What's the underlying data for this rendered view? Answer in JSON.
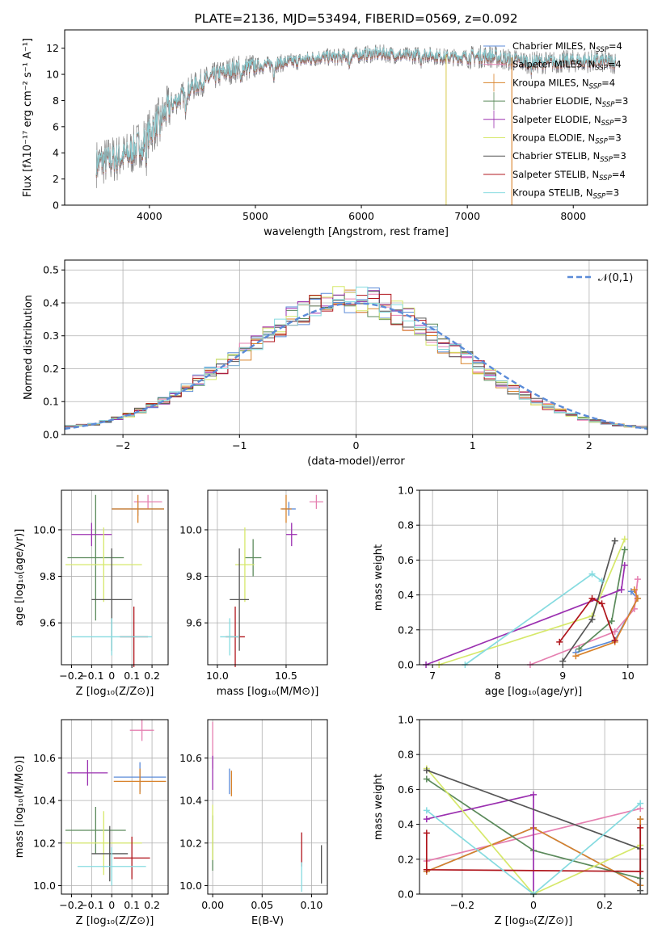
{
  "chart_data": [
    {
      "type": "line",
      "title": "PLATE=2136, MJD=53494, FIBERID=0569, z=0.092",
      "xlabel": "wavelength [Angstrom, rest frame]",
      "ylabel": "Flux [fλ10⁻¹⁷ erg cm⁻² s⁻¹ A⁻¹]",
      "xlim": [
        3200,
        8700
      ],
      "ylim": [
        0,
        13.4
      ],
      "xticks": [
        4000,
        5000,
        6000,
        7000,
        8000
      ],
      "yticks": [
        0,
        2,
        4,
        6,
        8,
        10,
        12
      ],
      "legend_position": "right",
      "legend": [
        {
          "label": "Chabrier MILES, N_SSP=4",
          "color": "#5b8bd8"
        },
        {
          "label": "Salpeter MILES, N_SSP=4",
          "color": "#e57fb0"
        },
        {
          "label": "Kroupa MILES, N_SSP=4",
          "color": "#d8822a"
        },
        {
          "label": "Chabrier ELODIE, N_SSP=3",
          "color": "#5b8a5b"
        },
        {
          "label": "Salpeter ELODIE, N_SSP=3",
          "color": "#9b30b0"
        },
        {
          "label": "Kroupa ELODIE, N_SSP=3",
          "color": "#d6e86a"
        },
        {
          "label": "Chabrier STELIB, N_SSP=3",
          "color": "#555555"
        },
        {
          "label": "Salpeter STELIB, N_SSP=4",
          "color": "#b0151c"
        },
        {
          "label": "Kroupa STELIB, N_SSP=3",
          "color": "#86dbe0"
        }
      ],
      "continuum": {
        "x": [
          3500,
          3800,
          4000,
          4200,
          4400,
          4600,
          4800,
          5000,
          5200,
          5400,
          5600,
          5800,
          6000,
          6200,
          6400,
          6600,
          6800,
          7000,
          7200,
          7400,
          7600,
          7800,
          8000,
          8200,
          8400
        ],
        "y": [
          3.2,
          3.8,
          5.5,
          7.6,
          9.0,
          9.8,
          10.4,
          10.6,
          10.8,
          11.0,
          11.3,
          11.3,
          11.5,
          11.6,
          11.4,
          11.5,
          11.3,
          11.3,
          11.4,
          11.1,
          10.9,
          10.9,
          11.0,
          11.0,
          10.9
        ]
      }
    },
    {
      "type": "bar",
      "xlabel": "(data-model)/error",
      "ylabel": "Normed distribution",
      "xlim": [
        -2.5,
        2.5
      ],
      "ylim": [
        0,
        0.53
      ],
      "xticks": [
        -2,
        -1,
        0,
        1,
        2
      ],
      "yticks": [
        0.0,
        0.1,
        0.2,
        0.3,
        0.4,
        0.5
      ],
      "bins_start": -2.5,
      "bin_width": 0.1,
      "reference_label": "𝒩(0,1)",
      "histogram_shape": [
        0.025,
        0.028,
        0.032,
        0.04,
        0.05,
        0.06,
        0.073,
        0.087,
        0.103,
        0.122,
        0.142,
        0.163,
        0.185,
        0.207,
        0.23,
        0.253,
        0.277,
        0.302,
        0.327,
        0.352,
        0.372,
        0.388,
        0.398,
        0.408,
        0.412,
        0.41,
        0.402,
        0.39,
        0.373,
        0.352,
        0.328,
        0.303,
        0.277,
        0.252,
        0.227,
        0.203,
        0.18,
        0.158,
        0.137,
        0.118,
        0.1,
        0.085,
        0.071,
        0.059,
        0.049,
        0.041,
        0.034,
        0.029,
        0.025,
        0.022
      ]
    },
    {
      "type": "scatter",
      "xlabel": "Z [log₁₀(Z/Z⊙)]",
      "ylabel": "age  [log₁₀(age/yr)]",
      "xlim": [
        -0.25,
        0.28
      ],
      "ylim": [
        9.42,
        10.17
      ],
      "xticks": [
        -0.2,
        -0.1,
        0.0,
        0.1,
        0.2
      ],
      "yticks": [
        9.6,
        9.8,
        10.0
      ],
      "points": [
        {
          "c": "#5b8bd8",
          "x": 0.13,
          "xe": 0.13,
          "y": 10.09,
          "ye": 0.03
        },
        {
          "c": "#e57fb0",
          "x": 0.18,
          "xe": 0.07,
          "y": 10.12,
          "ye": 0.03
        },
        {
          "c": "#d8822a",
          "x": 0.13,
          "xe": 0.13,
          "y": 10.09,
          "ye": 0.06
        },
        {
          "c": "#5b8a5b",
          "x": -0.08,
          "xe": 0.14,
          "y": 9.88,
          "ye": 0.27
        },
        {
          "c": "#9b30b0",
          "x": -0.1,
          "xe": 0.1,
          "y": 9.98,
          "ye": 0.05
        },
        {
          "c": "#d6e86a",
          "x": -0.04,
          "xe": 0.19,
          "y": 9.85,
          "ye": 0.16
        },
        {
          "c": "#555555",
          "x": 0.0,
          "xe": 0.1,
          "y": 9.7,
          "ye": 0.22
        },
        {
          "c": "#b0151c",
          "x": 0.11,
          "xe": 0.07,
          "y": 9.54,
          "ye": 0.13
        },
        {
          "c": "#86dbe0",
          "x": 0.0,
          "xe": 0.2,
          "y": 9.54,
          "ye": 0.08
        }
      ]
    },
    {
      "type": "scatter",
      "xlabel": "mass [log₁₀(M/M⊙)]",
      "xlim": [
        9.93,
        10.8
      ],
      "ylim": [
        9.42,
        10.17
      ],
      "xticks": [
        10.0,
        10.5
      ],
      "yticks": [
        9.6,
        9.8,
        10.0
      ],
      "points": [
        {
          "c": "#5b8bd8",
          "x": 10.52,
          "xe": 0.05,
          "y": 10.09,
          "ye": 0.03
        },
        {
          "c": "#e57fb0",
          "x": 10.72,
          "xe": 0.05,
          "y": 10.12,
          "ye": 0.03
        },
        {
          "c": "#d8822a",
          "x": 10.5,
          "xe": 0.04,
          "y": 10.09,
          "ye": 0.06
        },
        {
          "c": "#5b8a5b",
          "x": 10.26,
          "xe": 0.06,
          "y": 9.88,
          "ye": 0.08
        },
        {
          "c": "#9b30b0",
          "x": 10.54,
          "xe": 0.04,
          "y": 9.98,
          "ye": 0.05
        },
        {
          "c": "#d6e86a",
          "x": 10.2,
          "xe": 0.07,
          "y": 9.85,
          "ye": 0.16
        },
        {
          "c": "#555555",
          "x": 10.16,
          "xe": 0.07,
          "y": 9.7,
          "ye": 0.22
        },
        {
          "c": "#b0151c",
          "x": 10.13,
          "xe": 0.07,
          "y": 9.54,
          "ye": 0.13
        },
        {
          "c": "#86dbe0",
          "x": 10.09,
          "xe": 0.07,
          "y": 9.54,
          "ye": 0.08
        }
      ]
    },
    {
      "type": "line",
      "xlabel": "age  [log₁₀(age/yr)]",
      "ylabel": "mass weight",
      "xlim": [
        6.8,
        10.3
      ],
      "ylim": [
        0,
        1
      ],
      "xticks": [
        7,
        8,
        9,
        10
      ],
      "yticks": [
        0.0,
        0.2,
        0.4,
        0.6,
        0.8,
        1.0
      ],
      "series": [
        {
          "c": "#5b8bd8",
          "x": [
            9.2,
            9.8,
            10.15,
            10.05
          ],
          "y": [
            0.07,
            0.14,
            0.38,
            0.42
          ]
        },
        {
          "c": "#e57fb0",
          "x": [
            8.5,
            9.8,
            10.1,
            10.15
          ],
          "y": [
            0.0,
            0.19,
            0.32,
            0.49
          ]
        },
        {
          "c": "#d8822a",
          "x": [
            9.2,
            9.8,
            10.15,
            10.1
          ],
          "y": [
            0.05,
            0.13,
            0.38,
            0.43
          ]
        },
        {
          "c": "#5b8a5b",
          "x": [
            9.25,
            9.75,
            9.95
          ],
          "y": [
            0.09,
            0.25,
            0.66
          ]
        },
        {
          "c": "#9b30b0",
          "x": [
            6.9,
            9.9,
            9.95
          ],
          "y": [
            0.0,
            0.43,
            0.57
          ]
        },
        {
          "c": "#d6e86a",
          "x": [
            7.1,
            9.45,
            9.95
          ],
          "y": [
            0.0,
            0.28,
            0.72
          ]
        },
        {
          "c": "#555555",
          "x": [
            9.0,
            9.45,
            9.8
          ],
          "y": [
            0.02,
            0.26,
            0.71
          ]
        },
        {
          "c": "#b0151c",
          "x": [
            8.95,
            9.45,
            9.6,
            9.8
          ],
          "y": [
            0.13,
            0.38,
            0.35,
            0.14
          ]
        },
        {
          "c": "#86dbe0",
          "x": [
            7.5,
            9.45,
            9.6
          ],
          "y": [
            0.0,
            0.52,
            0.48
          ]
        }
      ]
    },
    {
      "type": "scatter",
      "xlabel": "Z [log₁₀(Z/Z⊙)]",
      "ylabel": "mass [log₁₀(M/M⊙)]",
      "xlim": [
        -0.25,
        0.28
      ],
      "ylim": [
        9.96,
        10.78
      ],
      "xticks": [
        -0.2,
        -0.1,
        0.0,
        0.1,
        0.2
      ],
      "yticks": [
        10.0,
        10.2,
        10.4,
        10.6
      ],
      "points": [
        {
          "c": "#5b8bd8",
          "x": 0.14,
          "xe": 0.13,
          "y": 10.51,
          "ye": 0.07
        },
        {
          "c": "#e57fb0",
          "x": 0.15,
          "xe": 0.06,
          "y": 10.73,
          "ye": 0.05
        },
        {
          "c": "#d8822a",
          "x": 0.14,
          "xe": 0.13,
          "y": 10.49,
          "ye": 0.06
        },
        {
          "c": "#5b8a5b",
          "x": -0.08,
          "xe": 0.15,
          "y": 10.26,
          "ye": 0.11
        },
        {
          "c": "#9b30b0",
          "x": -0.12,
          "xe": 0.1,
          "y": 10.53,
          "ye": 0.06
        },
        {
          "c": "#d6e86a",
          "x": -0.04,
          "xe": 0.19,
          "y": 10.2,
          "ye": 0.15
        },
        {
          "c": "#555555",
          "x": -0.01,
          "xe": 0.09,
          "y": 10.15,
          "ye": 0.13
        },
        {
          "c": "#b0151c",
          "x": 0.1,
          "xe": 0.09,
          "y": 10.13,
          "ye": 0.1
        },
        {
          "c": "#86dbe0",
          "x": 0.0,
          "xe": 0.17,
          "y": 10.09,
          "ye": 0.09
        }
      ]
    },
    {
      "type": "scatter",
      "xlabel": "E(B-V)",
      "xlim": [
        -0.005,
        0.116
      ],
      "ylim": [
        9.96,
        10.78
      ],
      "xticks": [
        0.0,
        0.05,
        0.1
      ],
      "yticks": [
        10.0,
        10.2,
        10.4,
        10.6
      ],
      "points": [
        {
          "c": "#5b8bd8",
          "x": 0.017,
          "xe": 0,
          "y": 10.49,
          "ye": 0.06
        },
        {
          "c": "#e57fb0",
          "x": 0.0,
          "xe": 0,
          "y": 10.66,
          "ye": 0.11
        },
        {
          "c": "#d8822a",
          "x": 0.019,
          "xe": 0,
          "y": 10.48,
          "ye": 0.06
        },
        {
          "c": "#5b8a5b",
          "x": 0.0,
          "xe": 0,
          "y": 10.2,
          "ye": 0.13
        },
        {
          "c": "#9b30b0",
          "x": 0.0,
          "xe": 0,
          "y": 10.53,
          "ye": 0.08
        },
        {
          "c": "#d6e86a",
          "x": 0.0,
          "xe": 0,
          "y": 10.25,
          "ye": 0.13
        },
        {
          "c": "#555555",
          "x": 0.11,
          "xe": 0,
          "y": 10.1,
          "ye": 0.09
        },
        {
          "c": "#b0151c",
          "x": 0.09,
          "xe": 0,
          "y": 10.17,
          "ye": 0.08
        },
        {
          "c": "#86dbe0",
          "x": 0.09,
          "xe": 0,
          "y": 10.04,
          "ye": 0.07
        }
      ]
    },
    {
      "type": "line",
      "xlabel": "Z [log₁₀(Z/Z⊙)]",
      "ylabel": "mass weight",
      "xlim": [
        -0.32,
        0.32
      ],
      "ylim": [
        0,
        1
      ],
      "xticks": [
        -0.2,
        0.0,
        0.2
      ],
      "yticks": [
        0.0,
        0.2,
        0.4,
        0.6,
        0.8,
        1.0
      ],
      "series": [
        {
          "c": "#5b8bd8",
          "x": [
            -0.3,
            0.0,
            0.3,
            0.3
          ],
          "y": [
            0.13,
            0.38,
            0.05,
            0.43
          ]
        },
        {
          "c": "#e57fb0",
          "x": [
            -0.3,
            0.3
          ],
          "y": [
            0.19,
            0.49
          ]
        },
        {
          "c": "#d8822a",
          "x": [
            -0.3,
            0.0,
            0.3,
            0.3
          ],
          "y": [
            0.13,
            0.38,
            0.05,
            0.43
          ]
        },
        {
          "c": "#5b8a5b",
          "x": [
            -0.3,
            0.0,
            0.3
          ],
          "y": [
            0.66,
            0.25,
            0.09
          ]
        },
        {
          "c": "#9b30b0",
          "x": [
            -0.3,
            0.0,
            0.0
          ],
          "y": [
            0.43,
            0.57,
            0.0
          ]
        },
        {
          "c": "#d6e86a",
          "x": [
            -0.3,
            0.0,
            0.3
          ],
          "y": [
            0.72,
            0.0,
            0.28
          ]
        },
        {
          "c": "#555555",
          "x": [
            -0.3,
            0.3,
            0.3
          ],
          "y": [
            0.71,
            0.26,
            0.02
          ]
        },
        {
          "c": "#b0151c",
          "x": [
            -0.3,
            -0.3,
            0.3,
            0.3
          ],
          "y": [
            0.35,
            0.14,
            0.13,
            0.38
          ]
        },
        {
          "c": "#86dbe0",
          "x": [
            -0.3,
            0.0,
            0.3
          ],
          "y": [
            0.48,
            0.0,
            0.52
          ]
        }
      ]
    }
  ]
}
